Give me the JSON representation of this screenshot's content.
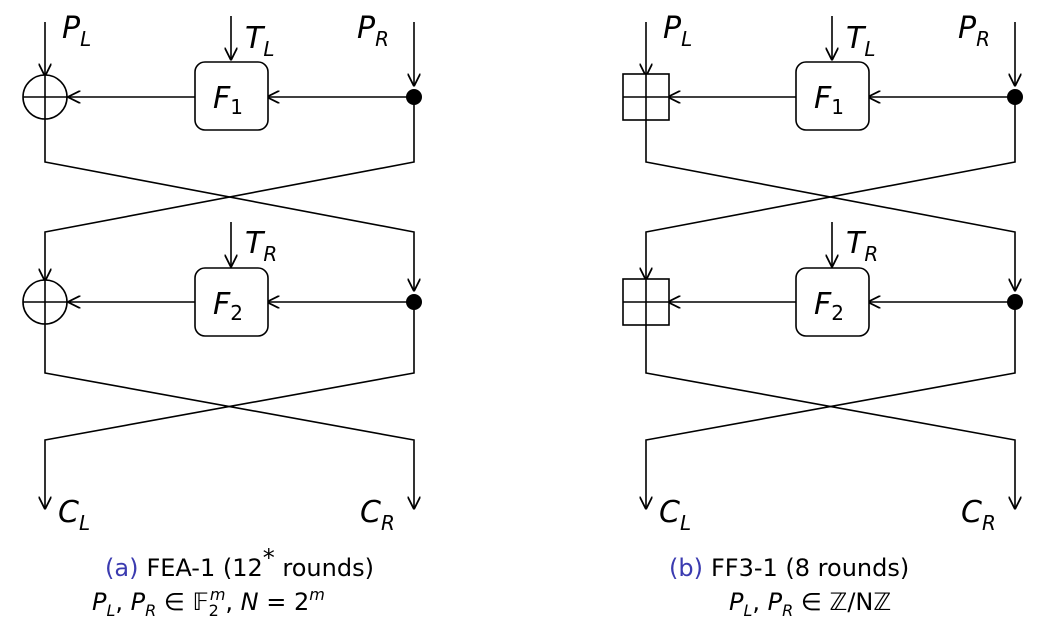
{
  "panels": [
    {
      "id": "a",
      "combiner": "xor",
      "inputs": {
        "left": {
          "base": "P",
          "sub": "L"
        },
        "right": {
          "base": "P",
          "sub": "R"
        }
      },
      "tweaks": [
        {
          "base": "T",
          "sub": "L"
        },
        {
          "base": "T",
          "sub": "R"
        }
      ],
      "functions": [
        {
          "base": "F",
          "sub": "1"
        },
        {
          "base": "F",
          "sub": "2"
        }
      ],
      "outputs": {
        "left": {
          "base": "C",
          "sub": "L"
        },
        "right": {
          "base": "C",
          "sub": "R"
        }
      },
      "caption": {
        "label": "(a)",
        "title": "FEA-1 (12",
        "sup": "*",
        "title_end": " rounds)",
        "math": "PL, PR ∈ F2m, N = 2m",
        "math_parts": {
          "p": "P",
          "l": "L",
          "r": "R",
          "in": " ∈ ",
          "field": "𝔽",
          "fsub": "2",
          "fsup": "m",
          "n": "N",
          "eq": " = 2",
          "exp": "m"
        }
      }
    },
    {
      "id": "b",
      "combiner": "modular-add",
      "inputs": {
        "left": {
          "base": "P",
          "sub": "L"
        },
        "right": {
          "base": "P",
          "sub": "R"
        }
      },
      "tweaks": [
        {
          "base": "T",
          "sub": "L"
        },
        {
          "base": "T",
          "sub": "R"
        }
      ],
      "functions": [
        {
          "base": "F",
          "sub": "1"
        },
        {
          "base": "F",
          "sub": "2"
        }
      ],
      "outputs": {
        "left": {
          "base": "C",
          "sub": "L"
        },
        "right": {
          "base": "C",
          "sub": "R"
        }
      },
      "caption": {
        "label": "(b)",
        "title": "FF3-1 (8 rounds)",
        "math": "PL, PR ∈ Z/NZ",
        "math_parts": {
          "p": "P",
          "l": "L",
          "r": "R",
          "in": " ∈ ",
          "ring": "ℤ/Nℤ"
        }
      }
    }
  ],
  "colors": {
    "caption_label": "#3b3bb0",
    "ink": "#000000"
  }
}
